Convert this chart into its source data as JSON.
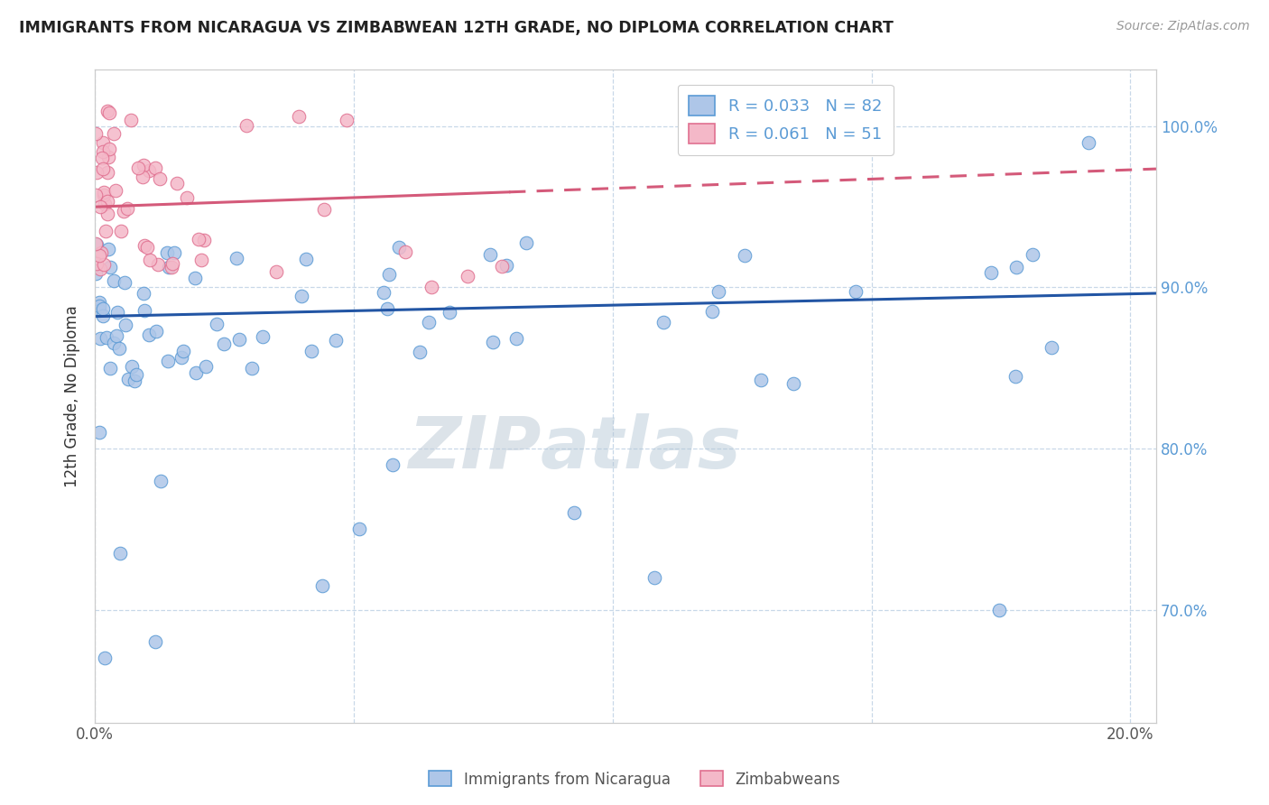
{
  "title": "IMMIGRANTS FROM NICARAGUA VS ZIMBABWEAN 12TH GRADE, NO DIPLOMA CORRELATION CHART",
  "source": "Source: ZipAtlas.com",
  "ylabel": "12th Grade, No Diploma",
  "xlim": [
    0.0,
    20.5
  ],
  "ylim": [
    63.0,
    103.5
  ],
  "yticks": [
    70.0,
    80.0,
    90.0,
    100.0
  ],
  "xticks": [
    0.0,
    5.0,
    10.0,
    15.0,
    20.0
  ],
  "xtick_labels": [
    "0.0%",
    "",
    "",
    "",
    "20.0%"
  ],
  "ytick_labels_right": [
    "70.0%",
    "80.0%",
    "90.0%",
    "100.0%"
  ],
  "legend_label1": "R = 0.033   N = 82",
  "legend_label2": "R = 0.061   N = 51",
  "nicaragua_color": "#aec6e8",
  "nicaragua_edge": "#5b9bd5",
  "zimbabwe_color": "#f4b8c8",
  "zimbabwe_edge": "#e07090",
  "trend_nicaragua_color": "#2255a4",
  "trend_zimbabwe_color": "#d45a7a",
  "watermark": "ZIPatlas",
  "watermark_color_zip": "#c0d0e0",
  "watermark_color_atlas": "#b0c8d8",
  "nic_trend_x0": 0.0,
  "nic_trend_y0": 88.2,
  "nic_trend_x1": 20.0,
  "nic_trend_y1": 89.6,
  "zim_solid_x0": 0.0,
  "zim_solid_y0": 95.0,
  "zim_solid_x1": 8.0,
  "zim_solid_y1": 96.2,
  "zim_dash_x0": 8.0,
  "zim_dash_y0": 96.2,
  "zim_dash_x1": 20.0,
  "zim_dash_y1": 97.3,
  "bottom_legend_label1": "Immigrants from Nicaragua",
  "bottom_legend_label2": "Zimbabweans"
}
